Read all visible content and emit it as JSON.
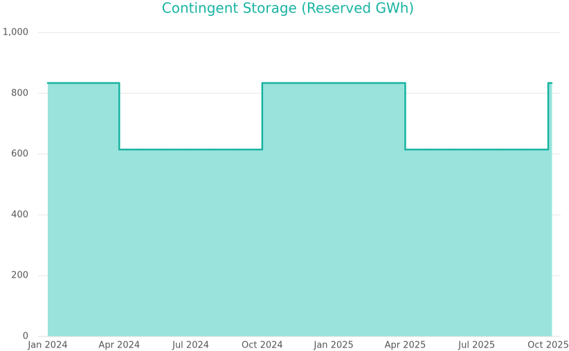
{
  "chart_data": {
    "type": "step-area",
    "title": "Contingent Storage (Reserved GWh)",
    "categories": [
      "Jan 2024",
      null,
      null,
      "Apr 2024",
      null,
      null,
      "Jul 2024",
      null,
      null,
      "Oct 2024",
      null,
      null,
      "Jan 2025",
      null,
      null,
      "Apr 2025",
      null,
      null,
      "Jul 2025",
      null,
      null,
      "Oct 2025"
    ],
    "values": [
      834,
      834,
      834,
      615,
      615,
      615,
      615,
      615,
      615,
      834,
      834,
      834,
      834,
      834,
      834,
      615,
      615,
      615,
      615,
      615,
      615,
      834
    ],
    "color": "#17b3a0",
    "fill": "#99e3dc",
    "ylim": [
      0,
      1000
    ],
    "yticks": [
      0,
      200,
      400,
      600,
      800,
      {
        "value": 1000,
        "label": "1,000"
      }
    ],
    "grid": true
  }
}
